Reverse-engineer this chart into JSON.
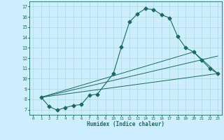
{
  "xlabel": "Humidex (Indice chaleur)",
  "bg_color": "#cceeff",
  "line_color": "#1a6b5a",
  "xlim": [
    -0.5,
    23.5
  ],
  "ylim": [
    6.5,
    17.5
  ],
  "xticks": [
    0,
    1,
    2,
    3,
    4,
    5,
    6,
    7,
    8,
    9,
    10,
    11,
    12,
    13,
    14,
    15,
    16,
    17,
    18,
    19,
    20,
    21,
    22,
    23
  ],
  "yticks": [
    7,
    8,
    9,
    10,
    11,
    12,
    13,
    14,
    15,
    16,
    17
  ],
  "line1_x": [
    1,
    2,
    3,
    4,
    5,
    6,
    7,
    8,
    10,
    11,
    12,
    13,
    14,
    15,
    16,
    17,
    18,
    19,
    20,
    21,
    22,
    23
  ],
  "line1_y": [
    8.2,
    7.3,
    6.95,
    7.2,
    7.4,
    7.5,
    8.4,
    8.5,
    10.5,
    13.1,
    15.5,
    16.3,
    16.8,
    16.7,
    16.2,
    15.9,
    14.1,
    13.0,
    12.6,
    11.8,
    11.0,
    10.5
  ],
  "line2_x": [
    1,
    23
  ],
  "line2_y": [
    8.2,
    10.5
  ],
  "line3_x": [
    1,
    23
  ],
  "line3_y": [
    8.2,
    12.2
  ],
  "line4_x": [
    1,
    20,
    23
  ],
  "line4_y": [
    8.2,
    12.6,
    10.5
  ]
}
